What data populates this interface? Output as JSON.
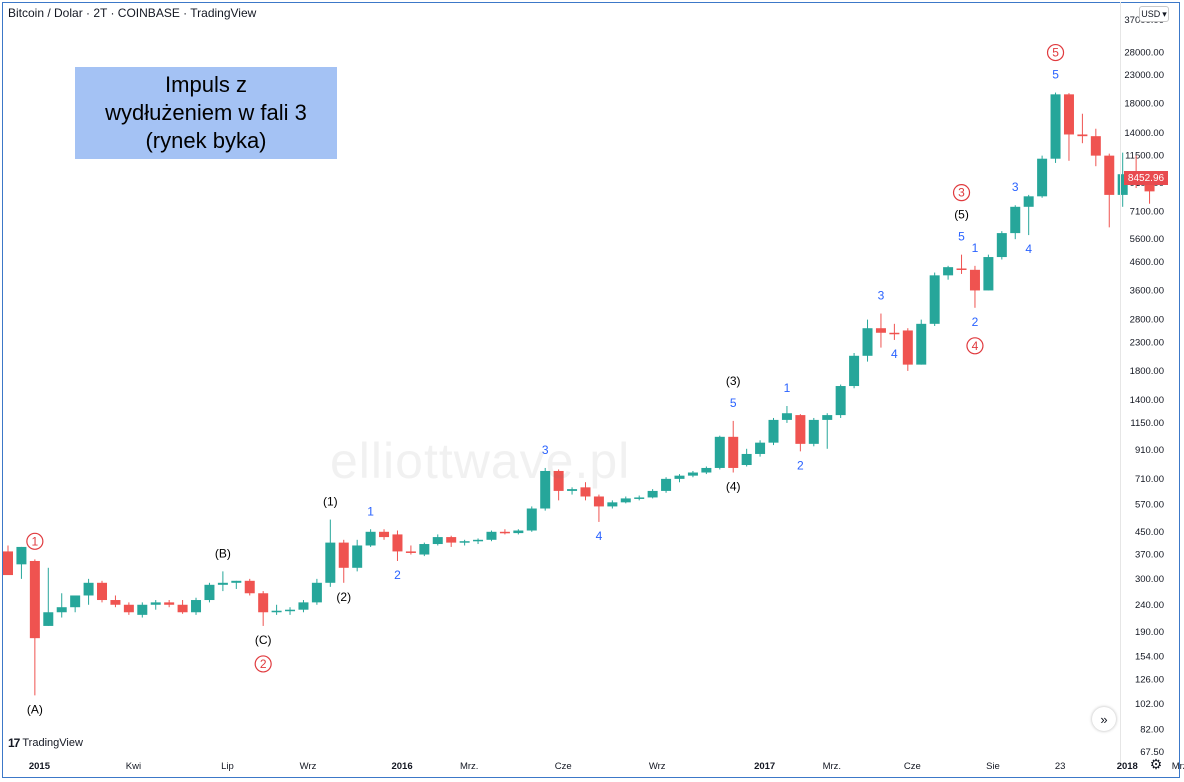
{
  "header": {
    "title": "Bitcoin / Dolar · 2T · COINBASE · TradingView"
  },
  "currency_button": {
    "label": "USD",
    "chevron_icon": "chevron-down-icon"
  },
  "last_price": "8452.96",
  "info_box": {
    "line1": "Impuls z",
    "line2": "wydłużeniem w fali 3",
    "line3": "(rynek byka)"
  },
  "watermark": "elliottwave.pl",
  "tv_logo": {
    "mark": "17",
    "text": "TradingView"
  },
  "scroll_button": {
    "label": "»"
  },
  "settings_icon": "gear-icon",
  "colors": {
    "up": "#26a69a",
    "down": "#ef5350",
    "wave_blue": "#2962ff",
    "wave_red": "#e03a3e",
    "frame": "#3c78c8",
    "box": "#a4c2f4"
  },
  "chart_data": {
    "type": "candlestick",
    "title": "Bitcoin / Dolar · 2T · COINBASE · TradingView",
    "timeframe": "2T",
    "scale": "log",
    "ylim": [
      67.5,
      37000
    ],
    "y_ticks": [
      "67.50",
      "82.00",
      "102.00",
      "126.00",
      "154.00",
      "190.00",
      "240.00",
      "300.00",
      "370.00",
      "450.00",
      "570.00",
      "710.00",
      "910.00",
      "1150.00",
      "1400.00",
      "1800.00",
      "2300.00",
      "2800.00",
      "3600.00",
      "4600.00",
      "5600.00",
      "7100.00",
      "9100.00",
      "11500.00",
      "14000.00",
      "18000.00",
      "23000.00",
      "28000.00",
      "37000.00"
    ],
    "x_ticks": [
      {
        "i": 1,
        "label": "2015"
      },
      {
        "i": 8,
        "label": "Kwi"
      },
      {
        "i": 15,
        "label": "Lip"
      },
      {
        "i": 21,
        "label": "Wrz"
      },
      {
        "i": 28,
        "label": "2016"
      },
      {
        "i": 33,
        "label": "Mrz."
      },
      {
        "i": 40,
        "label": "Cze"
      },
      {
        "i": 47,
        "label": "Wrz"
      },
      {
        "i": 55,
        "label": "2017"
      },
      {
        "i": 60,
        "label": "Mrz."
      },
      {
        "i": 66,
        "label": "Cze"
      },
      {
        "i": 72,
        "label": "Sie"
      },
      {
        "i": 77,
        "label": "23"
      },
      {
        "i": 82,
        "label": "2018"
      },
      {
        "i": 86,
        "label": "Mrz."
      }
    ],
    "candles": [
      {
        "o": 380,
        "h": 400,
        "l": 330,
        "c": 310
      },
      {
        "o": 340,
        "h": 395,
        "l": 300,
        "c": 395
      },
      {
        "o": 350,
        "h": 355,
        "l": 110,
        "c": 180
      },
      {
        "o": 200,
        "h": 330,
        "l": 200,
        "c": 225
      },
      {
        "o": 225,
        "h": 265,
        "l": 215,
        "c": 235
      },
      {
        "o": 235,
        "h": 255,
        "l": 225,
        "c": 260
      },
      {
        "o": 260,
        "h": 300,
        "l": 240,
        "c": 290
      },
      {
        "o": 290,
        "h": 295,
        "l": 245,
        "c": 250
      },
      {
        "o": 250,
        "h": 260,
        "l": 235,
        "c": 240
      },
      {
        "o": 240,
        "h": 245,
        "l": 220,
        "c": 225
      },
      {
        "o": 220,
        "h": 245,
        "l": 215,
        "c": 240
      },
      {
        "o": 240,
        "h": 250,
        "l": 230,
        "c": 245
      },
      {
        "o": 245,
        "h": 250,
        "l": 235,
        "c": 240
      },
      {
        "o": 240,
        "h": 250,
        "l": 222,
        "c": 225
      },
      {
        "o": 225,
        "h": 255,
        "l": 220,
        "c": 250
      },
      {
        "o": 250,
        "h": 290,
        "l": 245,
        "c": 285
      },
      {
        "o": 285,
        "h": 320,
        "l": 270,
        "c": 290
      },
      {
        "o": 290,
        "h": 295,
        "l": 275,
        "c": 295
      },
      {
        "o": 295,
        "h": 300,
        "l": 260,
        "c": 265
      },
      {
        "o": 265,
        "h": 270,
        "l": 200,
        "c": 225
      },
      {
        "o": 225,
        "h": 240,
        "l": 220,
        "c": 228
      },
      {
        "o": 228,
        "h": 235,
        "l": 220,
        "c": 230
      },
      {
        "o": 230,
        "h": 250,
        "l": 225,
        "c": 245
      },
      {
        "o": 245,
        "h": 300,
        "l": 240,
        "c": 290
      },
      {
        "o": 290,
        "h": 500,
        "l": 280,
        "c": 410
      },
      {
        "o": 410,
        "h": 420,
        "l": 290,
        "c": 330
      },
      {
        "o": 330,
        "h": 420,
        "l": 320,
        "c": 400
      },
      {
        "o": 400,
        "h": 460,
        "l": 395,
        "c": 450
      },
      {
        "o": 450,
        "h": 460,
        "l": 420,
        "c": 430
      },
      {
        "o": 440,
        "h": 455,
        "l": 350,
        "c": 380
      },
      {
        "o": 380,
        "h": 400,
        "l": 370,
        "c": 375
      },
      {
        "o": 370,
        "h": 410,
        "l": 365,
        "c": 405
      },
      {
        "o": 405,
        "h": 440,
        "l": 400,
        "c": 430
      },
      {
        "o": 430,
        "h": 435,
        "l": 395,
        "c": 410
      },
      {
        "o": 410,
        "h": 420,
        "l": 400,
        "c": 415
      },
      {
        "o": 415,
        "h": 425,
        "l": 405,
        "c": 420
      },
      {
        "o": 420,
        "h": 455,
        "l": 415,
        "c": 450
      },
      {
        "o": 450,
        "h": 460,
        "l": 440,
        "c": 445
      },
      {
        "o": 445,
        "h": 460,
        "l": 440,
        "c": 455
      },
      {
        "o": 455,
        "h": 560,
        "l": 450,
        "c": 550
      },
      {
        "o": 550,
        "h": 780,
        "l": 540,
        "c": 760
      },
      {
        "o": 760,
        "h": 770,
        "l": 590,
        "c": 640
      },
      {
        "o": 640,
        "h": 660,
        "l": 620,
        "c": 650
      },
      {
        "o": 660,
        "h": 690,
        "l": 590,
        "c": 610
      },
      {
        "o": 610,
        "h": 620,
        "l": 490,
        "c": 560
      },
      {
        "o": 560,
        "h": 590,
        "l": 550,
        "c": 580
      },
      {
        "o": 580,
        "h": 610,
        "l": 575,
        "c": 600
      },
      {
        "o": 600,
        "h": 615,
        "l": 590,
        "c": 605
      },
      {
        "o": 605,
        "h": 650,
        "l": 600,
        "c": 640
      },
      {
        "o": 640,
        "h": 720,
        "l": 630,
        "c": 710
      },
      {
        "o": 710,
        "h": 740,
        "l": 690,
        "c": 730
      },
      {
        "o": 730,
        "h": 760,
        "l": 720,
        "c": 750
      },
      {
        "o": 750,
        "h": 790,
        "l": 740,
        "c": 780
      },
      {
        "o": 780,
        "h": 1030,
        "l": 770,
        "c": 1020
      },
      {
        "o": 1020,
        "h": 1170,
        "l": 750,
        "c": 780
      },
      {
        "o": 800,
        "h": 920,
        "l": 790,
        "c": 880
      },
      {
        "o": 880,
        "h": 990,
        "l": 860,
        "c": 970
      },
      {
        "o": 970,
        "h": 1200,
        "l": 950,
        "c": 1180
      },
      {
        "o": 1180,
        "h": 1330,
        "l": 1150,
        "c": 1250
      },
      {
        "o": 1230,
        "h": 1240,
        "l": 900,
        "c": 960
      },
      {
        "o": 960,
        "h": 1200,
        "l": 940,
        "c": 1180
      },
      {
        "o": 1180,
        "h": 1250,
        "l": 920,
        "c": 1230
      },
      {
        "o": 1230,
        "h": 1600,
        "l": 1200,
        "c": 1580
      },
      {
        "o": 1580,
        "h": 2100,
        "l": 1550,
        "c": 2050
      },
      {
        "o": 2050,
        "h": 2800,
        "l": 1950,
        "c": 2600
      },
      {
        "o": 2600,
        "h": 2950,
        "l": 2200,
        "c": 2500
      },
      {
        "o": 2500,
        "h": 2700,
        "l": 2350,
        "c": 2480
      },
      {
        "o": 2550,
        "h": 2600,
        "l": 1800,
        "c": 1900
      },
      {
        "o": 1900,
        "h": 2800,
        "l": 1900,
        "c": 2700
      },
      {
        "o": 2700,
        "h": 4200,
        "l": 2650,
        "c": 4100
      },
      {
        "o": 4100,
        "h": 4450,
        "l": 3950,
        "c": 4400
      },
      {
        "o": 4350,
        "h": 4900,
        "l": 4150,
        "c": 4300
      },
      {
        "o": 4300,
        "h": 4450,
        "l": 3100,
        "c": 3600
      },
      {
        "o": 3600,
        "h": 4900,
        "l": 3600,
        "c": 4800
      },
      {
        "o": 4800,
        "h": 6000,
        "l": 4700,
        "c": 5900
      },
      {
        "o": 5900,
        "h": 7500,
        "l": 5600,
        "c": 7400
      },
      {
        "o": 7400,
        "h": 8200,
        "l": 5800,
        "c": 8100
      },
      {
        "o": 8100,
        "h": 11500,
        "l": 8000,
        "c": 11200
      },
      {
        "o": 11200,
        "h": 19800,
        "l": 10800,
        "c": 19500
      },
      {
        "o": 19500,
        "h": 19700,
        "l": 11000,
        "c": 13800
      },
      {
        "o": 13800,
        "h": 16500,
        "l": 12800,
        "c": 13600
      },
      {
        "o": 13600,
        "h": 14500,
        "l": 10500,
        "c": 11500
      },
      {
        "o": 11500,
        "h": 11700,
        "l": 6200,
        "c": 8200
      },
      {
        "o": 8200,
        "h": 11800,
        "l": 7400,
        "c": 9800
      },
      {
        "o": 9800,
        "h": 11500,
        "l": 8700,
        "c": 9700
      },
      {
        "o": 9700,
        "h": 10000,
        "l": 7600,
        "c": 8452.96
      }
    ],
    "annotations": [
      {
        "text": "1",
        "style": "circle",
        "i": 2,
        "pos": "above"
      },
      {
        "text": "(A)",
        "style": "black",
        "i": 2,
        "pos": "below"
      },
      {
        "text": "(B)",
        "style": "black",
        "i": 16,
        "pos": "above"
      },
      {
        "text": "(C)",
        "style": "black",
        "i": 19,
        "pos": "below"
      },
      {
        "text": "2",
        "style": "circle",
        "i": 19,
        "pos": "below2"
      },
      {
        "text": "(1)",
        "style": "black",
        "i": 24,
        "pos": "above"
      },
      {
        "text": "(2)",
        "style": "black",
        "i": 25,
        "pos": "below"
      },
      {
        "text": "1",
        "style": "blue",
        "i": 27,
        "pos": "above"
      },
      {
        "text": "2",
        "style": "blue",
        "i": 29,
        "pos": "below"
      },
      {
        "text": "3",
        "style": "blue",
        "i": 40,
        "pos": "above"
      },
      {
        "text": "4",
        "style": "blue",
        "i": 44,
        "pos": "below"
      },
      {
        "text": "(3)",
        "style": "black",
        "i": 54,
        "pos": "above2"
      },
      {
        "text": "5",
        "style": "blue",
        "i": 54,
        "pos": "above"
      },
      {
        "text": "(4)",
        "style": "black",
        "i": 54,
        "pos": "below"
      },
      {
        "text": "1",
        "style": "blue",
        "i": 58,
        "pos": "above"
      },
      {
        "text": "2",
        "style": "blue",
        "i": 59,
        "pos": "below"
      },
      {
        "text": "3",
        "style": "blue",
        "i": 65,
        "pos": "above"
      },
      {
        "text": "4",
        "style": "blue",
        "i": 66,
        "pos": "below"
      },
      {
        "text": "3",
        "style": "circle",
        "i": 71,
        "pos": "above3"
      },
      {
        "text": "(5)",
        "style": "black",
        "i": 71,
        "pos": "above2"
      },
      {
        "text": "5",
        "style": "blue",
        "i": 71,
        "pos": "above"
      },
      {
        "text": "1",
        "style": "blue",
        "i": 72,
        "pos": "above"
      },
      {
        "text": "2",
        "style": "blue",
        "i": 72,
        "pos": "below"
      },
      {
        "text": "4",
        "style": "circle",
        "i": 72,
        "pos": "below2"
      },
      {
        "text": "3",
        "style": "blue",
        "i": 75,
        "pos": "above"
      },
      {
        "text": "4",
        "style": "blue",
        "i": 76,
        "pos": "below"
      },
      {
        "text": "5",
        "style": "blue",
        "i": 78,
        "pos": "above"
      },
      {
        "text": "5",
        "style": "circle",
        "i": 78,
        "pos": "above2"
      }
    ]
  }
}
